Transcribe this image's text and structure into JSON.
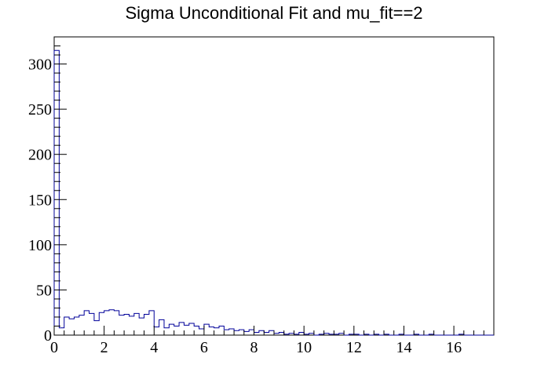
{
  "chart_data": {
    "type": "bar",
    "title": "Sigma Unconditional Fit and mu_fit==2",
    "xlabel": "",
    "ylabel": "",
    "xlim": [
      0,
      17.6
    ],
    "ylim": [
      0,
      330
    ],
    "bin_width": 0.2,
    "x_ticks": [
      0,
      2,
      4,
      6,
      8,
      10,
      12,
      14,
      16
    ],
    "x_tick_labels": [
      "0",
      "2",
      "4",
      "6",
      "8",
      "10",
      "12",
      "14",
      "16"
    ],
    "y_ticks": [
      0,
      50,
      100,
      150,
      200,
      250,
      300
    ],
    "y_tick_labels": [
      "0",
      "50",
      "100",
      "150",
      "200",
      "250",
      "300"
    ],
    "line_color": "#000099",
    "grid": false,
    "values": [
      315,
      8,
      20,
      18,
      20,
      22,
      27,
      24,
      16,
      25,
      27,
      28,
      27,
      22,
      23,
      21,
      24,
      19,
      23,
      27,
      9,
      17,
      8,
      12,
      10,
      14,
      11,
      13,
      10,
      7,
      12,
      9,
      8,
      10,
      6,
      7,
      5,
      6,
      4,
      6,
      3,
      5,
      3,
      5,
      2,
      3,
      1,
      2,
      1,
      3,
      1,
      2,
      0,
      1,
      2,
      1,
      1,
      2,
      0,
      1,
      1,
      0,
      1,
      0,
      1,
      0,
      1,
      0,
      0,
      1,
      0,
      0,
      1,
      0,
      0,
      1,
      0,
      0,
      0,
      0,
      0,
      1,
      0,
      0,
      0,
      0,
      0,
      0
    ]
  }
}
